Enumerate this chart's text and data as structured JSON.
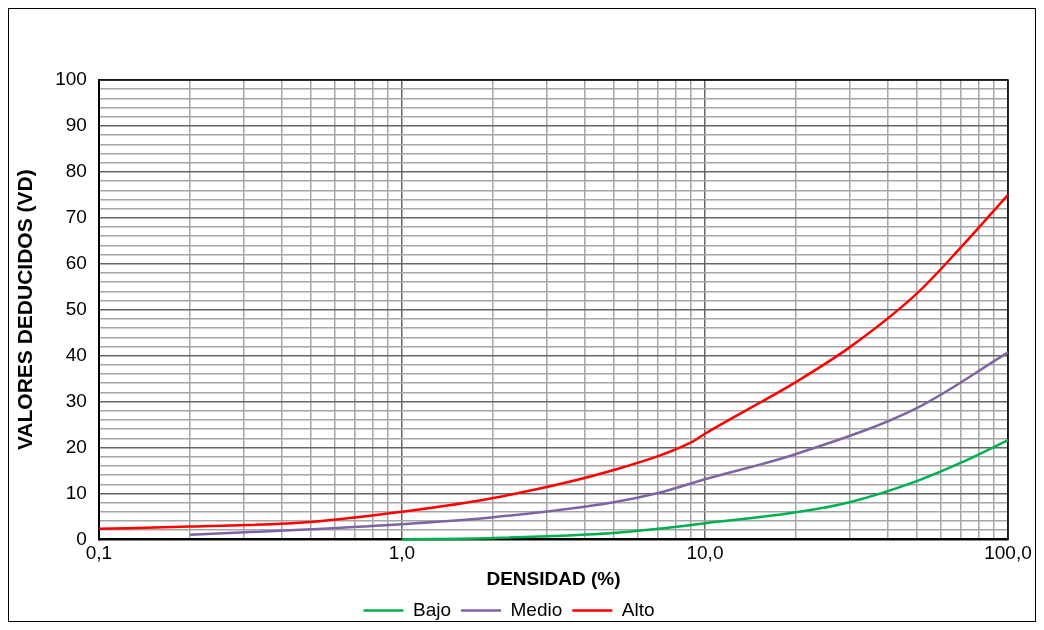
{
  "chart_data": {
    "type": "line",
    "xlabel": "DENSIDAD (%)",
    "ylabel": "VALORES DEDUCIDOS (VD)",
    "log": "x",
    "grid": true,
    "legend": "bottom",
    "marker": "none",
    "line_style": "solid",
    "xlim": [
      0.1,
      100
    ],
    "ylim": [
      0,
      100
    ],
    "xticks": [
      {
        "value": 0.1,
        "label": "0,1"
      },
      {
        "value": 0.2,
        "label": null
      },
      {
        "value": 0.3,
        "label": null
      },
      {
        "value": 0.4,
        "label": null
      },
      {
        "value": 0.5,
        "label": null
      },
      {
        "value": 0.6,
        "label": null
      },
      {
        "value": 0.7,
        "label": null
      },
      {
        "value": 0.8,
        "label": null
      },
      {
        "value": 0.9,
        "label": null
      },
      {
        "value": 1,
        "label": "1,0"
      },
      {
        "value": 2,
        "label": null
      },
      {
        "value": 3,
        "label": null
      },
      {
        "value": 4,
        "label": null
      },
      {
        "value": 5,
        "label": null
      },
      {
        "value": 6,
        "label": null
      },
      {
        "value": 7,
        "label": null
      },
      {
        "value": 8,
        "label": null
      },
      {
        "value": 9,
        "label": null
      },
      {
        "value": 10,
        "label": "10,0"
      },
      {
        "value": 20,
        "label": null
      },
      {
        "value": 30,
        "label": null
      },
      {
        "value": 40,
        "label": null
      },
      {
        "value": 50,
        "label": null
      },
      {
        "value": 60,
        "label": null
      },
      {
        "value": 70,
        "label": null
      },
      {
        "value": 80,
        "label": null
      },
      {
        "value": 90,
        "label": null
      },
      {
        "value": 100,
        "label": "100,0"
      }
    ],
    "yticks": [
      0,
      {
        "value": 2,
        "label": null
      },
      {
        "value": 4,
        "label": null
      },
      {
        "value": 6,
        "label": null
      },
      {
        "value": 8,
        "label": null
      },
      10,
      {
        "value": 12,
        "label": null
      },
      {
        "value": 14,
        "label": null
      },
      {
        "value": 16,
        "label": null
      },
      {
        "value": 18,
        "label": null
      },
      20,
      {
        "value": 22,
        "label": null
      },
      {
        "value": 24,
        "label": null
      },
      {
        "value": 26,
        "label": null
      },
      {
        "value": 28,
        "label": null
      },
      30,
      {
        "value": 32,
        "label": null
      },
      {
        "value": 34,
        "label": null
      },
      {
        "value": 36,
        "label": null
      },
      {
        "value": 38,
        "label": null
      },
      40,
      {
        "value": 42,
        "label": null
      },
      {
        "value": 44,
        "label": null
      },
      {
        "value": 46,
        "label": null
      },
      {
        "value": 48,
        "label": null
      },
      50,
      {
        "value": 52,
        "label": null
      },
      {
        "value": 54,
        "label": null
      },
      {
        "value": 56,
        "label": null
      },
      {
        "value": 58,
        "label": null
      },
      60,
      {
        "value": 62,
        "label": null
      },
      {
        "value": 64,
        "label": null
      },
      {
        "value": 66,
        "label": null
      },
      {
        "value": 68,
        "label": null
      },
      70,
      {
        "value": 72,
        "label": null
      },
      {
        "value": 74,
        "label": null
      },
      {
        "value": 76,
        "label": null
      },
      {
        "value": 78,
        "label": null
      },
      80,
      {
        "value": 82,
        "label": null
      },
      {
        "value": 84,
        "label": null
      },
      {
        "value": 86,
        "label": null
      },
      {
        "value": 88,
        "label": null
      },
      90,
      {
        "value": 92,
        "label": null
      },
      {
        "value": 94,
        "label": null
      },
      {
        "value": 96,
        "label": null
      },
      {
        "value": 98,
        "label": null
      },
      100
    ],
    "series": [
      {
        "name": "Bajo",
        "color": "#00b050",
        "x": [
          1,
          2,
          5,
          7,
          10,
          20,
          30,
          50,
          70,
          100
        ],
        "values": [
          0,
          0.3,
          1.4,
          2.3,
          3.5,
          5.9,
          8.1,
          12.7,
          16.7,
          21.6
        ]
      },
      {
        "name": "Medio",
        "color": "#8064a2",
        "x": [
          0.2,
          0.5,
          1,
          2,
          5,
          7,
          10,
          20,
          50,
          100
        ],
        "values": [
          1,
          2.2,
          3.3,
          4.8,
          8.1,
          10.1,
          13.1,
          18.6,
          28.6,
          40.7
        ]
      },
      {
        "name": "Alto",
        "color": "#ff0000",
        "x": [
          0.1,
          0.2,
          0.5,
          1,
          2,
          5,
          9,
          10,
          20,
          30,
          50,
          70,
          100
        ],
        "values": [
          2.3,
          2.8,
          3.8,
          6,
          9,
          15.1,
          21.1,
          23,
          34.3,
          41.8,
          53.5,
          63.6,
          75
        ]
      }
    ]
  }
}
